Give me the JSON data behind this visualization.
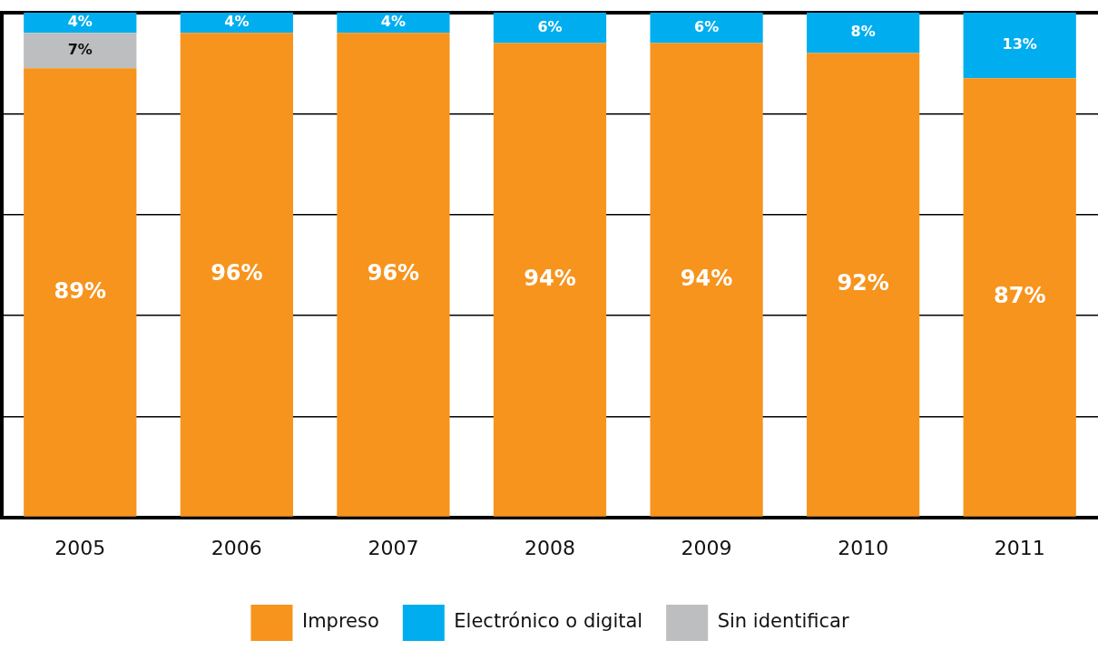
{
  "chart_data": {
    "type": "bar",
    "stacked": true,
    "categories": [
      "2005",
      "2006",
      "2007",
      "2008",
      "2009",
      "2010",
      "2011"
    ],
    "series": [
      {
        "name": "Impreso",
        "color": "#f7941d",
        "values": [
          89,
          96,
          96,
          94,
          94,
          92,
          87
        ],
        "value_labels": [
          "89%",
          "96%",
          "96%",
          "94%",
          "94%",
          "92%",
          "87%"
        ]
      },
      {
        "name": "Sin identificar",
        "color": "#bcbec0",
        "values": [
          7,
          null,
          null,
          null,
          null,
          null,
          null
        ],
        "value_labels": [
          "7%",
          null,
          null,
          null,
          null,
          null,
          null
        ]
      },
      {
        "name": "Electrónico o digital",
        "color": "#00aeef",
        "values": [
          4,
          4,
          4,
          6,
          6,
          8,
          13
        ],
        "value_labels": [
          "4%",
          "4%",
          "4%",
          "6%",
          "6%",
          "8%",
          "13%"
        ]
      }
    ],
    "ylim": [
      0,
      100
    ],
    "yticks": [
      {
        "value": 0,
        "label": null
      },
      {
        "value": 20,
        "label": null
      },
      {
        "value": 40,
        "label": null
      },
      {
        "value": 60,
        "label": null
      },
      {
        "value": 80,
        "label": null
      },
      {
        "value": 100,
        "label": null
      }
    ],
    "grid": "y",
    "tick_labels": "x",
    "legend": "bottom"
  }
}
